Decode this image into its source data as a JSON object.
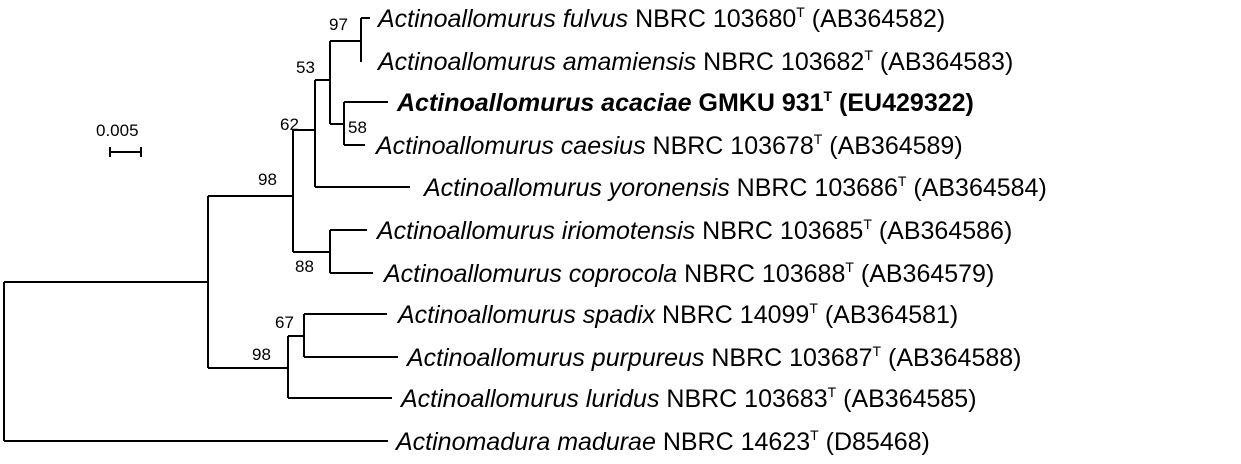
{
  "scale": {
    "label": "0.005"
  },
  "bootstrap": [
    {
      "id": "fulvus_amamiensis",
      "value": "97"
    },
    {
      "id": "clade_53",
      "value": "53"
    },
    {
      "id": "acaciae_caesius",
      "value": "58"
    },
    {
      "id": "clade_62",
      "value": "62"
    },
    {
      "id": "clade_98_upper",
      "value": "98"
    },
    {
      "id": "iriomotensis_coprocola",
      "value": "88"
    },
    {
      "id": "spadix_purpureus",
      "value": "67"
    },
    {
      "id": "clade_98_lower",
      "value": "98"
    }
  ],
  "taxa": [
    {
      "species": "Actinoallomurus fulvus",
      "strain": " NBRC 103680",
      "type": "T",
      "accession": " (AB364582)",
      "bold": false
    },
    {
      "species": "Actinoallomurus amamiensis",
      "strain": " NBRC 103682",
      "type": "T",
      "accession": " (AB364583)",
      "bold": false
    },
    {
      "species": "Actinoallomurus acaciae",
      "strain": " GMKU 931",
      "type": "T",
      "accession": " (EU429322)",
      "bold": true
    },
    {
      "species": "Actinoallomurus caesius",
      "strain": " NBRC 103678",
      "type": "T",
      "accession": " (AB364589)",
      "bold": false
    },
    {
      "species": "Actinoallomurus yoronensis",
      "strain": " NBRC 103686",
      "type": "T",
      "accession": " (AB364584)",
      "bold": false
    },
    {
      "species": "Actinoallomurus iriomotensis",
      "strain": " NBRC 103685",
      "type": "T",
      "accession": " (AB364586)",
      "bold": false
    },
    {
      "species": "Actinoallomurus coprocola",
      "strain": " NBRC 103688",
      "type": "T",
      "accession": " (AB364579)",
      "bold": false
    },
    {
      "species": "Actinoallomurus spadix",
      "strain": " NBRC 14099",
      "type": "T",
      "accession": " (AB364581)",
      "bold": false
    },
    {
      "species": "Actinoallomurus purpureus",
      "strain": " NBRC 103687",
      "type": "T",
      "accession": " (AB364588)",
      "bold": false
    },
    {
      "species": "Actinoallomurus luridus",
      "strain": " NBRC 103683",
      "type": "T",
      "accession": " (AB364585)",
      "bold": false
    },
    {
      "species": "Actinomadura madurae",
      "strain": " NBRC 14623",
      "type": "T",
      "accession": " (D85468)",
      "bold": false
    }
  ]
}
